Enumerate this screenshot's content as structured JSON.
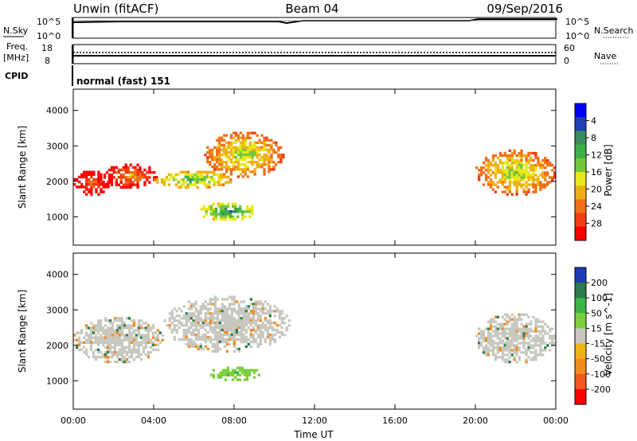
{
  "header": {
    "title_left": "Unwin (fitACF)",
    "title_center": "Beam 04",
    "title_right": "09/Sep/2016"
  },
  "meta_panels": {
    "nsky": {
      "label": "N.Sky",
      "tick_top": "10^5",
      "tick_bottom": "10^0",
      "right_label": "N.Search"
    },
    "freq": {
      "label_line1": "Freq.",
      "label_line2": "[MHz]",
      "ticks_left": [
        "18",
        "8"
      ],
      "ticks_right": [
        "60",
        "0"
      ],
      "right_label": "Nave"
    },
    "cpid": {
      "label": "CPID",
      "text": "normal (fast) 151"
    }
  },
  "x_axis": {
    "label": "Time UT",
    "ticks": [
      "00:00",
      "04:00",
      "08:00",
      "12:00",
      "16:00",
      "20:00",
      "00:00"
    ]
  },
  "chart_data": [
    {
      "type": "heatmap",
      "name": "power",
      "ylabel": "Slant Range [km]",
      "y_ticks": [
        1000,
        2000,
        3000,
        4000
      ],
      "ylim": [
        200,
        4600
      ],
      "xlim_hours": [
        0,
        24
      ],
      "colorbar": {
        "label": "Power [dB]",
        "ticks": [
          "4",
          "8",
          "12",
          "16",
          "20",
          "24",
          "28"
        ],
        "colors": [
          "#0000ff",
          "#2040b4",
          "#3a8a5a",
          "#3cb048",
          "#72c83c",
          "#e8e81a",
          "#f0b014",
          "#f07018",
          "#f03c14",
          "#ff0000"
        ]
      },
      "regions": [
        {
          "from_hour": 0.0,
          "to_hour": 1.8,
          "range_from": 1600,
          "range_to": 2300,
          "level": 3
        },
        {
          "from_hour": 1.5,
          "to_hour": 4.2,
          "range_from": 1800,
          "range_to": 2500,
          "level": 4
        },
        {
          "from_hour": 4.0,
          "to_hour": 8.0,
          "range_from": 1800,
          "range_to": 2300,
          "level": 7
        },
        {
          "from_hour": 6.5,
          "to_hour": 10.5,
          "range_from": 2100,
          "range_to": 3400,
          "level": 6
        },
        {
          "from_hour": 6.2,
          "to_hour": 9.2,
          "range_from": 900,
          "range_to": 1400,
          "level": 8
        },
        {
          "from_hour": 20.0,
          "to_hour": 24.0,
          "range_from": 1600,
          "range_to": 2900,
          "level": 6
        }
      ]
    },
    {
      "type": "heatmap",
      "name": "velocity",
      "ylabel": "Slant Range [km]",
      "y_ticks": [
        1000,
        2000,
        3000,
        4000
      ],
      "ylim": [
        200,
        4600
      ],
      "xlim_hours": [
        0,
        24
      ],
      "colorbar": {
        "label": "Velocity [m s^-1]",
        "ticks": [
          "200",
          "100",
          "50",
          "15",
          "-15",
          "-50",
          "-100",
          "-200"
        ],
        "colors": [
          "#1c3cb4",
          "#2c7a4a",
          "#3cb448",
          "#7cd03c",
          "#c8c8c0",
          "#f0b414",
          "#f08c1c",
          "#f05a1c",
          "#ff0000"
        ]
      },
      "regions": [
        {
          "from_hour": 0.0,
          "to_hour": 4.5,
          "range_from": 1500,
          "range_to": 2800,
          "velocity": 0
        },
        {
          "from_hour": 4.5,
          "to_hour": 10.8,
          "range_from": 1800,
          "range_to": 3400,
          "velocity": 0
        },
        {
          "from_hour": 6.8,
          "to_hour": 9.3,
          "range_from": 1000,
          "range_to": 1400,
          "velocity": 70
        },
        {
          "from_hour": 20.0,
          "to_hour": 24.0,
          "range_from": 1500,
          "range_to": 2900,
          "velocity": 0
        }
      ]
    }
  ]
}
